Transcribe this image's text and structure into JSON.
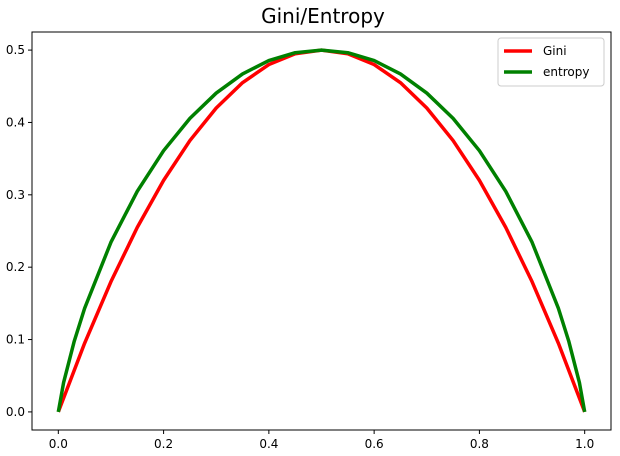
{
  "chart_data": {
    "type": "line",
    "title": "Gini/Entropy",
    "xlabel": "",
    "ylabel": "",
    "xlim": [
      -0.05,
      1.05
    ],
    "ylim": [
      -0.025,
      0.525
    ],
    "grid": false,
    "legend_position": "top-right",
    "x_ticks": [
      0.0,
      0.2,
      0.4,
      0.6,
      0.8,
      1.0
    ],
    "x_tick_labels": [
      "0.0",
      "0.2",
      "0.4",
      "0.6",
      "0.8",
      "1.0"
    ],
    "y_ticks": [
      0.0,
      0.1,
      0.2,
      0.3,
      0.4,
      0.5
    ],
    "y_tick_labels": [
      "0.0",
      "0.1",
      "0.2",
      "0.3",
      "0.4",
      "0.5"
    ],
    "series": [
      {
        "name": "Gini",
        "color": "#ff0000",
        "x": [
          0.0,
          0.05,
          0.1,
          0.15,
          0.2,
          0.25,
          0.3,
          0.35,
          0.4,
          0.45,
          0.5,
          0.55,
          0.6,
          0.65,
          0.7,
          0.75,
          0.8,
          0.85,
          0.9,
          0.95,
          1.0
        ],
        "y": [
          0.0,
          0.095,
          0.18,
          0.255,
          0.32,
          0.375,
          0.42,
          0.455,
          0.48,
          0.495,
          0.5,
          0.495,
          0.48,
          0.455,
          0.42,
          0.375,
          0.32,
          0.255,
          0.18,
          0.095,
          0.0
        ]
      },
      {
        "name": "entropy",
        "color": "#008000",
        "x": [
          0.0,
          0.01,
          0.03,
          0.05,
          0.1,
          0.15,
          0.2,
          0.25,
          0.3,
          0.35,
          0.4,
          0.45,
          0.5,
          0.55,
          0.6,
          0.65,
          0.7,
          0.75,
          0.8,
          0.85,
          0.9,
          0.95,
          0.97,
          0.99,
          1.0
        ],
        "y": [
          0.0,
          0.0404,
          0.0971,
          0.1432,
          0.2345,
          0.3049,
          0.361,
          0.4056,
          0.4406,
          0.4671,
          0.4855,
          0.4964,
          0.5,
          0.4964,
          0.4855,
          0.4671,
          0.4406,
          0.4056,
          0.361,
          0.3049,
          0.2345,
          0.1432,
          0.0971,
          0.0404,
          0.0
        ]
      }
    ]
  }
}
